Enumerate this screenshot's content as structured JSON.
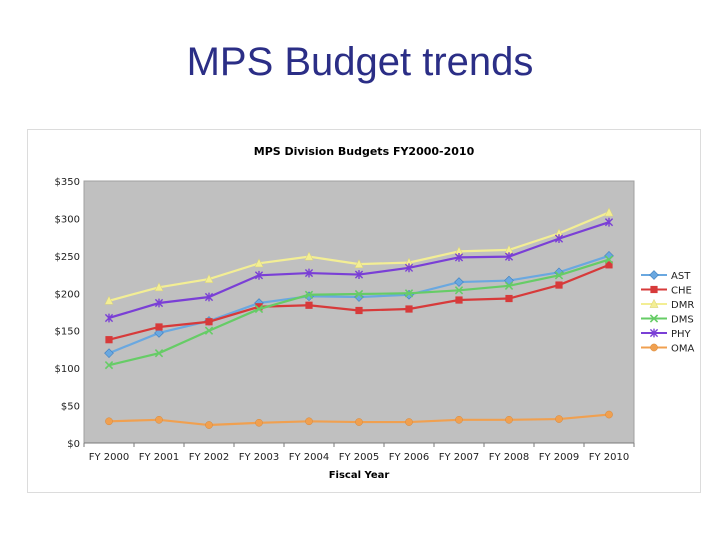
{
  "slide": {
    "title": "MPS Budget trends"
  },
  "colors": {
    "plot_bg": "#c0c0c0",
    "AST": "#6aa8e0",
    "CHE": "#d73a3a",
    "DMR": "#f3ee94",
    "DMS": "#66cc66",
    "PHY": "#7a3fd6",
    "OMA": "#f0a050"
  },
  "chart_data": {
    "type": "line",
    "title": "MPS Division Budgets FY2000-2010",
    "xlabel": "Fiscal Year",
    "ylabel": "",
    "ylim": [
      0,
      350
    ],
    "yticks": [
      0,
      50,
      100,
      150,
      200,
      250,
      300,
      350
    ],
    "ytick_labels": [
      "$0",
      "$50",
      "$100",
      "$150",
      "$200",
      "$250",
      "$300",
      "$350"
    ],
    "categories": [
      "FY 2000",
      "FY 2001",
      "FY 2002",
      "FY 2003",
      "FY 2004",
      "FY 2005",
      "FY 2006",
      "FY 2007",
      "FY 2008",
      "FY 2009",
      "FY 2010"
    ],
    "grid": false,
    "legend": "right",
    "series": [
      {
        "name": "AST",
        "marker": "diamond",
        "values": [
          120,
          147,
          163,
          187,
          196,
          195,
          198,
          215,
          217,
          228,
          250
        ]
      },
      {
        "name": "CHE",
        "marker": "square",
        "values": [
          138,
          155,
          162,
          182,
          184,
          177,
          179,
          191,
          193,
          211,
          238
        ]
      },
      {
        "name": "DMR",
        "marker": "triangle",
        "values": [
          190,
          208,
          219,
          240,
          249,
          239,
          241,
          256,
          258,
          280,
          308
        ]
      },
      {
        "name": "DMS",
        "marker": "x",
        "values": [
          104,
          120,
          150,
          179,
          198,
          199,
          200,
          204,
          210,
          224,
          245
        ]
      },
      {
        "name": "PHY",
        "marker": "star",
        "values": [
          167,
          187,
          195,
          224,
          227,
          225,
          234,
          248,
          249,
          273,
          295
        ]
      },
      {
        "name": "OMA",
        "marker": "circle",
        "values": [
          29,
          31,
          24,
          27,
          29,
          28,
          28,
          31,
          31,
          32,
          38
        ]
      }
    ]
  }
}
